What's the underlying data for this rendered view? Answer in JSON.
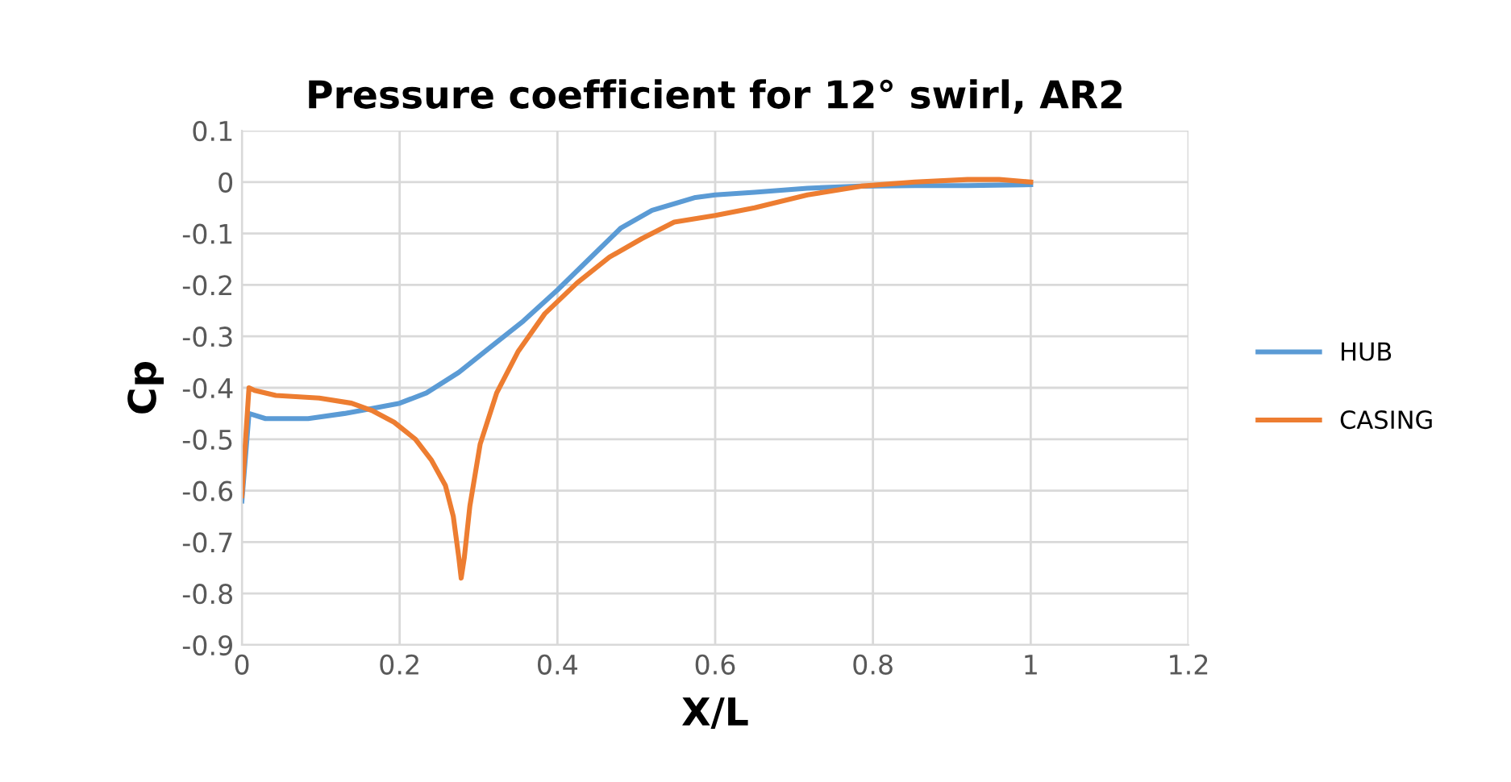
{
  "chart_data": {
    "type": "line",
    "title": "Pressure coefficient for 12° swirl, AR2",
    "xlabel": "X/L",
    "ylabel": "Cp",
    "xlim": [
      0,
      1.2
    ],
    "xticks": [
      0,
      0.2,
      0.4,
      0.6,
      0.8,
      1,
      1.2
    ],
    "ylim": [
      -0.9,
      0.1
    ],
    "yticks": [
      -0.9,
      -0.8,
      -0.7,
      -0.6,
      -0.5,
      -0.4,
      -0.3,
      -0.2,
      -0.1,
      0,
      0.1
    ],
    "grid": true,
    "legend": "right",
    "marker": "none",
    "line_style": "solid",
    "series": [
      {
        "name": "HUB",
        "color": "#5b9bd5",
        "x": [
          0,
          0.009,
          0.03,
          0.084,
          0.13,
          0.166,
          0.2,
          0.234,
          0.275,
          0.316,
          0.357,
          0.4,
          0.44,
          0.48,
          0.52,
          0.575,
          0.6,
          0.65,
          0.717,
          0.785,
          0.853,
          0.92,
          1.0
        ],
        "values": [
          -0.62,
          -0.45,
          -0.46,
          -0.46,
          -0.45,
          -0.44,
          -0.43,
          -0.41,
          -0.37,
          -0.32,
          -0.27,
          -0.21,
          -0.15,
          -0.09,
          -0.055,
          -0.03,
          -0.025,
          -0.02,
          -0.012,
          -0.008,
          -0.007,
          -0.007,
          -0.005
        ]
      },
      {
        "name": "CASING",
        "color": "#ed7d31",
        "x": [
          0,
          0.009,
          0.016,
          0.043,
          0.098,
          0.139,
          0.166,
          0.193,
          0.22,
          0.24,
          0.258,
          0.268,
          0.275,
          0.278,
          0.282,
          0.289,
          0.302,
          0.323,
          0.35,
          0.384,
          0.425,
          0.466,
          0.507,
          0.548,
          0.6,
          0.65,
          0.717,
          0.785,
          0.853,
          0.92,
          0.96,
          1.0
        ],
        "values": [
          -0.61,
          -0.4,
          -0.405,
          -0.415,
          -0.42,
          -0.43,
          -0.445,
          -0.467,
          -0.5,
          -0.54,
          -0.59,
          -0.65,
          -0.73,
          -0.77,
          -0.73,
          -0.63,
          -0.51,
          -0.41,
          -0.33,
          -0.256,
          -0.196,
          -0.146,
          -0.11,
          -0.078,
          -0.065,
          -0.05,
          -0.025,
          -0.008,
          0.0,
          0.005,
          0.005,
          0.0
        ]
      }
    ]
  }
}
